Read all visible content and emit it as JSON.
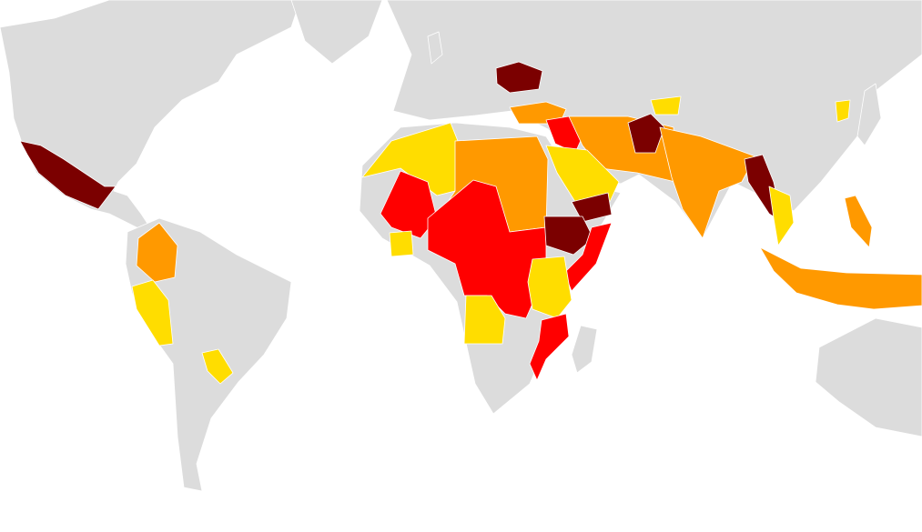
{
  "map": {
    "palette": [
      "#7b0000",
      "#ff0000",
      "#ff9900",
      "#ffdd00"
    ],
    "land": "#dcdcdc",
    "sea": "#ffffff"
  }
}
